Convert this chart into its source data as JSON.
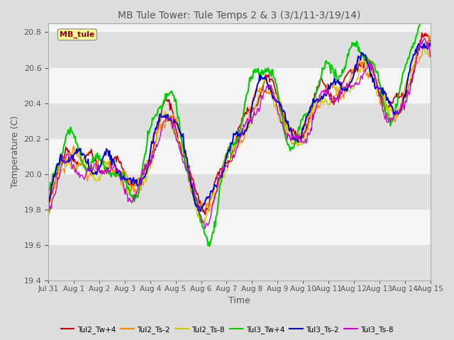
{
  "title": "MB Tule Tower: Tule Temps 2 & 3 (3/1/11-3/19/14)",
  "xlabel": "Time",
  "ylabel": "Temperature (C)",
  "ylim": [
    19.4,
    20.85
  ],
  "yticks": [
    19.4,
    19.6,
    19.8,
    20.0,
    20.2,
    20.4,
    20.6,
    20.8
  ],
  "xtick_labels": [
    "Jul 31",
    "Aug 1",
    "Aug 2",
    "Aug 3",
    "Aug 4",
    "Aug 5",
    "Aug 6",
    "Aug 7",
    "Aug 8",
    "Aug 9",
    "Aug 10",
    "Aug 11",
    "Aug 12",
    "Aug 13",
    "Aug 14",
    "Aug 15"
  ],
  "annotation_text": "MB_tule",
  "series_colors": [
    "#cc0000",
    "#ff8800",
    "#cccc00",
    "#00cc00",
    "#0000cc",
    "#cc00cc"
  ],
  "series_labels": [
    "Tul2_Tw+4",
    "Tul2_Ts-2",
    "Tul2_Ts-8",
    "Tul3_Tw+4",
    "Tul3_Ts-2",
    "Tul3_Ts-8"
  ],
  "bg_color": "#dddddd",
  "plot_bg_color": "#f5f5f5",
  "band_color": "#e0e0e0",
  "title_color": "#555555",
  "tick_color": "#555555",
  "n_points": 500
}
